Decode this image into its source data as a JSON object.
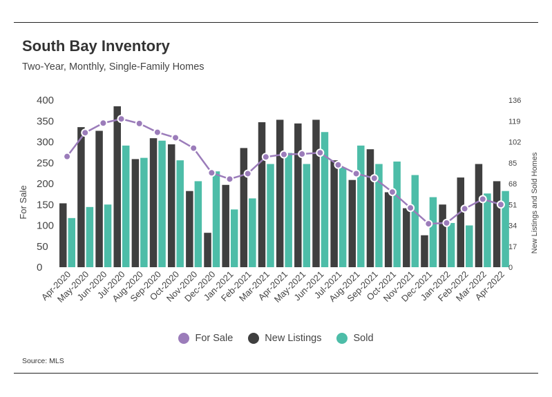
{
  "header": {
    "title": "South Bay Inventory",
    "subtitle": "Two-Year, Monthly, Single-Family Homes"
  },
  "footer": {
    "source": "Source:  MLS"
  },
  "colors": {
    "for_sale": "#9b7cba",
    "new_listings": "#3f3f3f",
    "sold": "#4dbda8"
  },
  "chart_data": {
    "type": "bar",
    "categories": [
      "Apr-2020",
      "May-2020",
      "Jun-2020",
      "Jul-2020",
      "Aug-2020",
      "Sep-2020",
      "Oct-2020",
      "Nov-2020",
      "Dec-2020",
      "Jan-2021",
      "Feb-2021",
      "Mar-2021",
      "Apr-2021",
      "May-2021",
      "Jun-2021",
      "Jul-2021",
      "Aug-2021",
      "Sep-2021",
      "Oct-2021",
      "Nov-2021",
      "Dec-2021",
      "Jan-2022",
      "Feb-2022",
      "Mar-2022",
      "Apr-2022"
    ],
    "series": [
      {
        "name": "New Listings",
        "type": "bar",
        "axis": "right",
        "values": [
          52,
          114,
          111,
          131,
          88,
          105,
          100,
          62,
          28,
          67,
          97,
          118,
          120,
          117,
          120,
          87,
          71,
          96,
          61,
          48,
          26,
          51,
          73,
          84,
          70
        ]
      },
      {
        "name": "Sold",
        "type": "bar",
        "axis": "right",
        "values": [
          40,
          49,
          51,
          99,
          89,
          103,
          87,
          70,
          78,
          47,
          56,
          84,
          93,
          84,
          110,
          81,
          99,
          84,
          86,
          75,
          57,
          36,
          34,
          60,
          62
        ]
      },
      {
        "name": "For Sale",
        "type": "line",
        "axis": "left",
        "values": [
          265,
          322,
          345,
          355,
          344,
          323,
          310,
          285,
          226,
          211,
          224,
          264,
          270,
          271,
          274,
          245,
          224,
          213,
          180,
          142,
          104,
          106,
          140,
          163,
          150
        ]
      }
    ],
    "left_axis": {
      "label": "For Sale",
      "ylim": [
        0,
        400
      ],
      "ticks": [
        0,
        50,
        100,
        150,
        200,
        250,
        300,
        350,
        400
      ]
    },
    "right_axis": {
      "label": "New Listings and Sold Homes",
      "ylim": [
        0,
        136
      ],
      "ticks": [
        0,
        17,
        34,
        51,
        68,
        85,
        102,
        119,
        136
      ]
    },
    "legend": {
      "position": "bottom",
      "entries": [
        "For Sale",
        "New Listings",
        "Sold"
      ]
    },
    "grid": false
  }
}
